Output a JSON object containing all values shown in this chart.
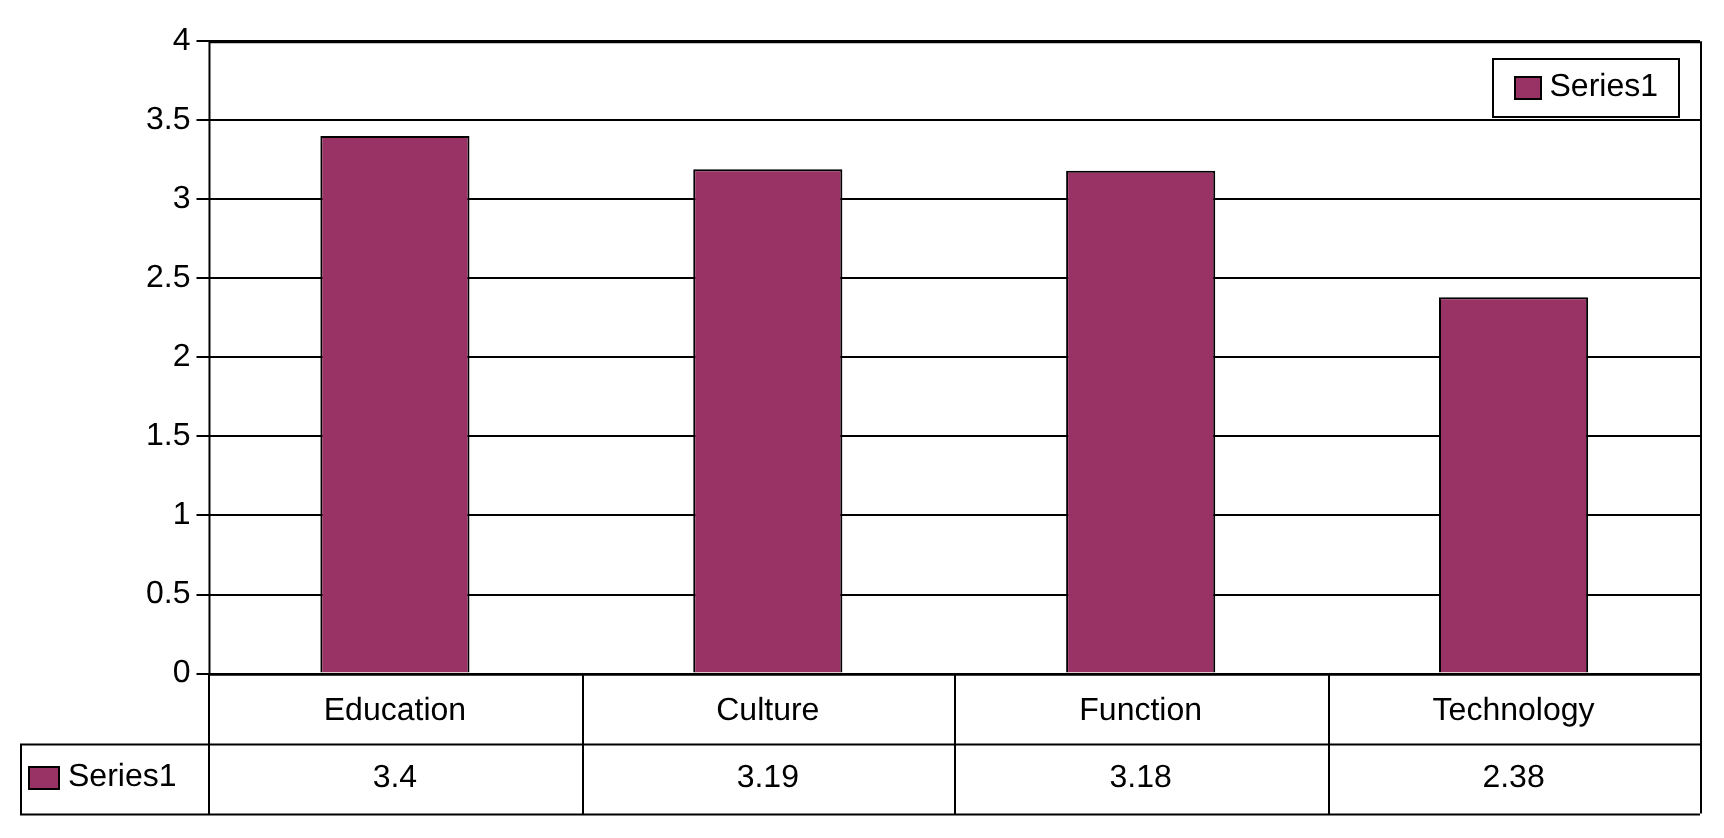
{
  "chart_data": {
    "type": "bar",
    "categories": [
      "Education",
      "Culture",
      "Function",
      "Technology"
    ],
    "series": [
      {
        "name": "Series1",
        "color": "#993366",
        "values": [
          3.4,
          3.19,
          3.18,
          2.38
        ]
      }
    ],
    "ylim": [
      0,
      4
    ],
    "yticks": [
      0,
      0.5,
      1,
      1.5,
      2,
      2.5,
      3,
      3.5,
      4
    ],
    "grid": "y",
    "legend": "top right",
    "data_labels": true
  }
}
